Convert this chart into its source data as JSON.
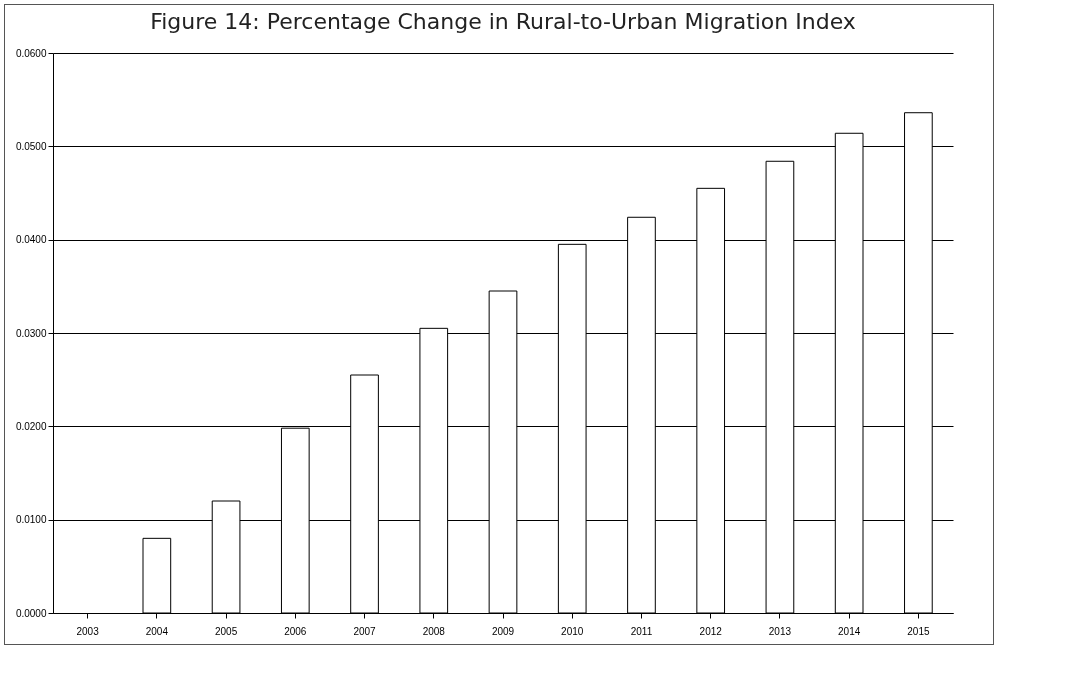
{
  "chart_data": {
    "type": "bar",
    "title": "Figure 14: Percentage Change in Rural-to-Urban Migration Index",
    "categories": [
      "2003",
      "2004",
      "2005",
      "2006",
      "2007",
      "2008",
      "2009",
      "2010",
      "2011",
      "2012",
      "2013",
      "2014",
      "2015"
    ],
    "values": [
      null,
      0.008,
      0.012,
      0.0198,
      0.0255,
      0.0305,
      0.0345,
      0.0395,
      0.0424,
      0.0455,
      0.0484,
      0.0514,
      0.0536
    ],
    "color": "#ffffff",
    "ylim": [
      0,
      0.06
    ],
    "yticks": [
      {
        "value": 0,
        "label": "0.0000"
      },
      {
        "value": 0.01,
        "label": "0.0100"
      },
      {
        "value": 0.02,
        "label": "0.0200"
      },
      {
        "value": 0.03,
        "label": "0.0300"
      },
      {
        "value": 0.04,
        "label": "0.0400"
      },
      {
        "value": 0.05,
        "label": "0.0500"
      },
      {
        "value": 0.06,
        "label": "0.0600"
      }
    ],
    "grid": "y"
  }
}
